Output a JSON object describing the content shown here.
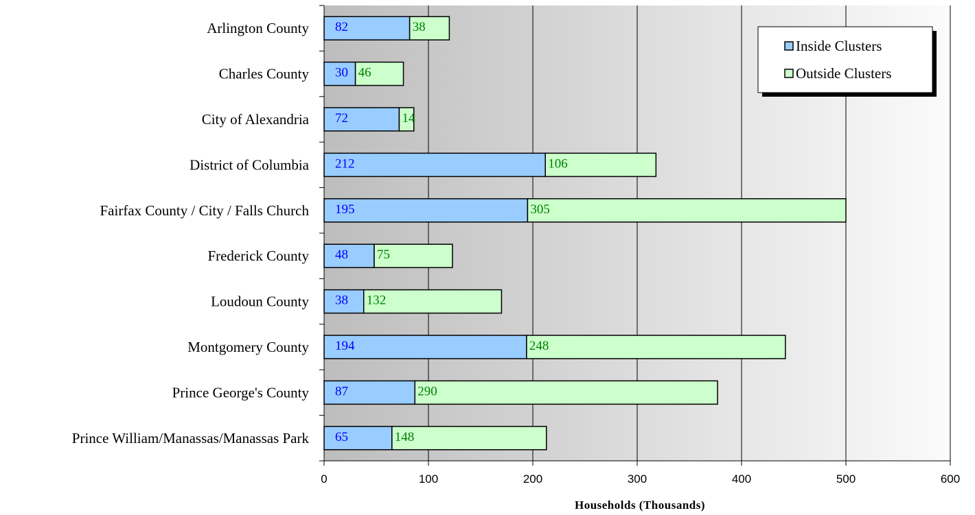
{
  "chart_data": {
    "type": "bar",
    "orientation": "horizontal",
    "stacked": true,
    "categories": [
      "Arlington County",
      "Charles County",
      "City of Alexandria",
      "District of Columbia",
      "Fairfax County / City / Falls Church",
      "Frederick County",
      "Loudoun County",
      "Montgomery County",
      "Prince George's County",
      "Prince William/Manassas/Manassas Park"
    ],
    "series": [
      {
        "name": "Inside Clusters",
        "color": "#99ccff",
        "label_color": "#0000ff",
        "values": [
          82,
          30,
          72,
          212,
          195,
          48,
          38,
          194,
          87,
          65
        ]
      },
      {
        "name": "Outside Clusters",
        "color": "#ccffcc",
        "label_color": "#008000",
        "values": [
          38,
          46,
          14,
          106,
          305,
          75,
          132,
          248,
          290,
          148
        ]
      }
    ],
    "xlabel": "Households (Thousands)",
    "xlim": [
      0,
      600
    ],
    "xticks": [
      "0",
      "100",
      "200",
      "300",
      "400",
      "500",
      "600"
    ],
    "grid": true,
    "legend_position": "top-right",
    "background": "gradient-gray"
  }
}
